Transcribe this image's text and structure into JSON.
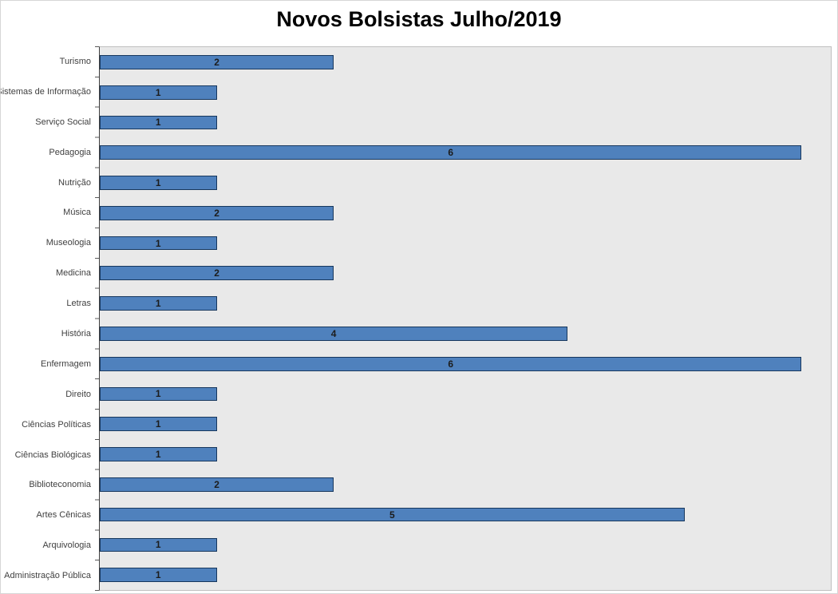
{
  "chart_data": {
    "type": "bar",
    "orientation": "horizontal",
    "title": "Novos Bolsistas Julho/2019",
    "categories": [
      "Turismo",
      "Sistemas de Informação",
      "Serviço Social",
      "Pedagogia",
      "Nutrição",
      "Música",
      "Museologia",
      "Medicina",
      "Letras",
      "História",
      "Enfermagem",
      "Direito",
      "Ciências Políticas",
      "Ciências Biológicas",
      "Biblioteconomia",
      "Artes Cênicas",
      "Arquivologia",
      "Administração Pública"
    ],
    "values": [
      2,
      1,
      1,
      6,
      1,
      2,
      1,
      2,
      1,
      4,
      6,
      1,
      1,
      1,
      2,
      5,
      1,
      1
    ],
    "category_order": "top-to-bottom",
    "xlabel": "",
    "ylabel": "",
    "xlim": [
      0,
      6.25
    ],
    "grid": false,
    "legend": "none",
    "value_label_position": "center",
    "colors": {
      "bar_fill": "#4f81bd",
      "bar_border": "#17375d",
      "plot_background": "#e9e9e9",
      "value_label": "#1c1c1c",
      "category_label": "#3f3f3f",
      "title": "#000000"
    }
  }
}
